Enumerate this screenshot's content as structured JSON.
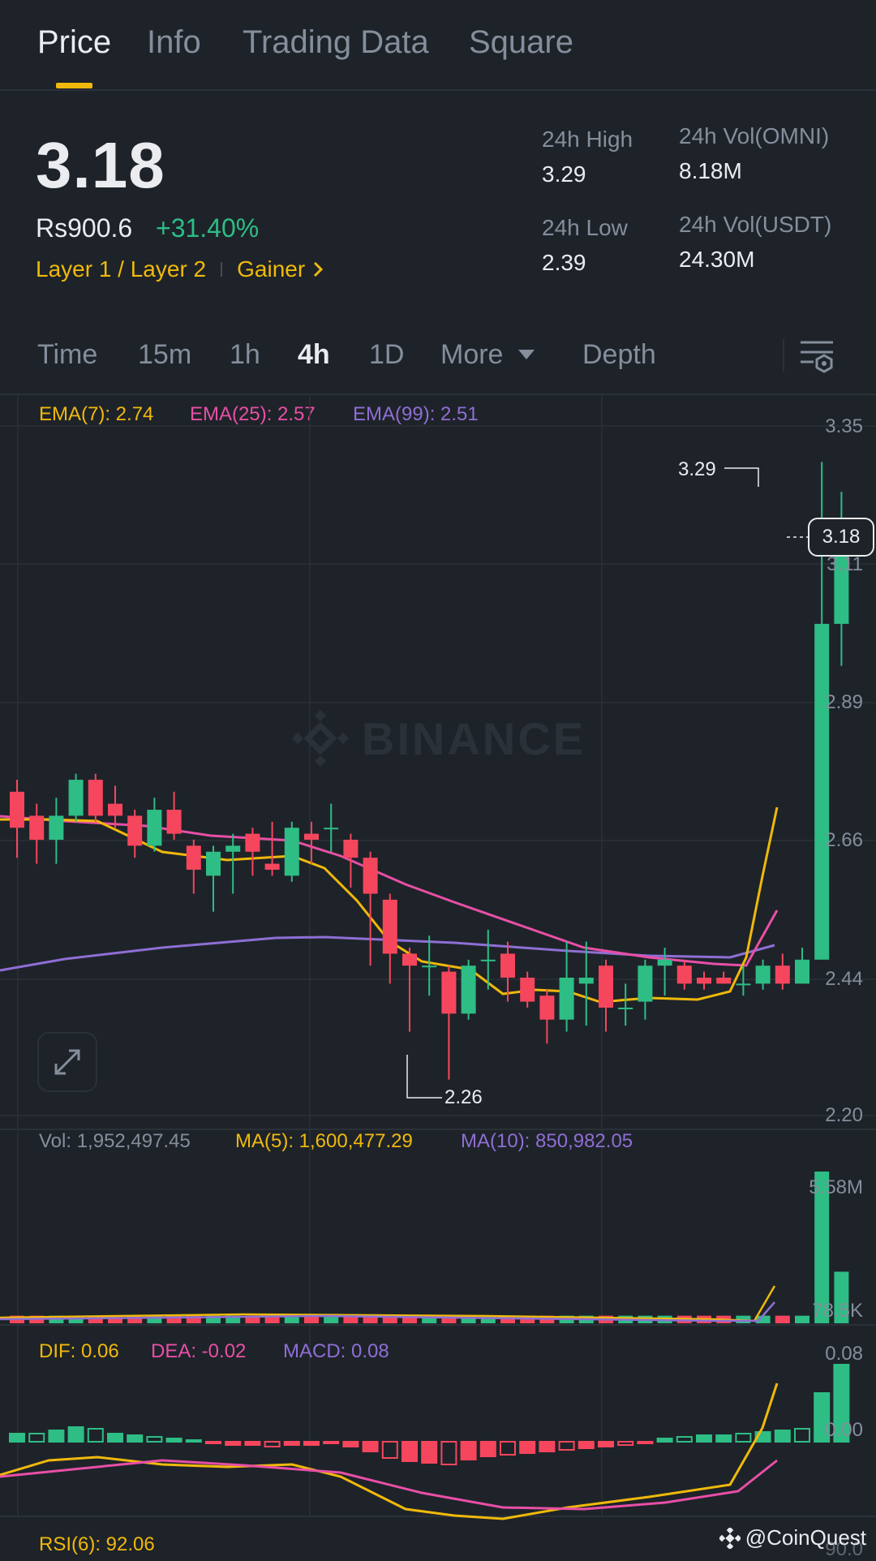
{
  "tabs": [
    "Price",
    "Info",
    "Trading Data",
    "Square"
  ],
  "price": {
    "last": "3.18",
    "fiat": "Rs900.6",
    "change": "+31.40%",
    "tag1": "Layer 1 / Layer 2",
    "tag2": "Gainer",
    "stats": {
      "high_label": "24h High",
      "high": "3.29",
      "low_label": "24h Low",
      "low": "2.39",
      "vol_base_label": "24h Vol(OMNI)",
      "vol_base": "8.18M",
      "vol_quote_label": "24h Vol(USDT)",
      "vol_quote": "24.30M"
    }
  },
  "intervals": [
    "Time",
    "15m",
    "1h",
    "4h",
    "1D",
    "More",
    "Depth"
  ],
  "ema": {
    "ema7": "EMA(7): 2.74",
    "ema25": "EMA(25): 2.57",
    "ema99": "EMA(99): 2.51"
  },
  "price_axis": [
    "3.35",
    "3.11",
    "2.89",
    "2.66",
    "2.44",
    "2.20"
  ],
  "markers": {
    "high": "3.29",
    "low": "2.26",
    "current": "3.18"
  },
  "watermark": "BINANCE",
  "volume": {
    "vol": "Vol: 1,952,497.45",
    "ma5": "MA(5): 1,600,477.29",
    "ma10": "MA(10): 850,982.05",
    "axis": [
      "5.58M",
      "78.5K"
    ]
  },
  "macd": {
    "dif": "DIF: 0.06",
    "dea": "DEA: -0.02",
    "macd": "MACD: 0.08",
    "axis": [
      "0.08",
      "0.00",
      "90.0"
    ]
  },
  "rsi": {
    "rsi6": "RSI(6): 92.06"
  },
  "credit": "@CoinQuest",
  "colors": {
    "up": "#2ebd85",
    "down": "#f6465d",
    "accent": "#f0b90b",
    "ema7": "#f0b90b",
    "ema25": "#e84fa6",
    "ema99": "#8f6ed5",
    "background": "#1e2329",
    "grid": "#2b3139",
    "muted": "#848e9c"
  },
  "icons": [
    "chevron-right-icon",
    "caret-down-icon",
    "chart-settings-icon",
    "expand-icon",
    "binance-logo-icon"
  ]
}
